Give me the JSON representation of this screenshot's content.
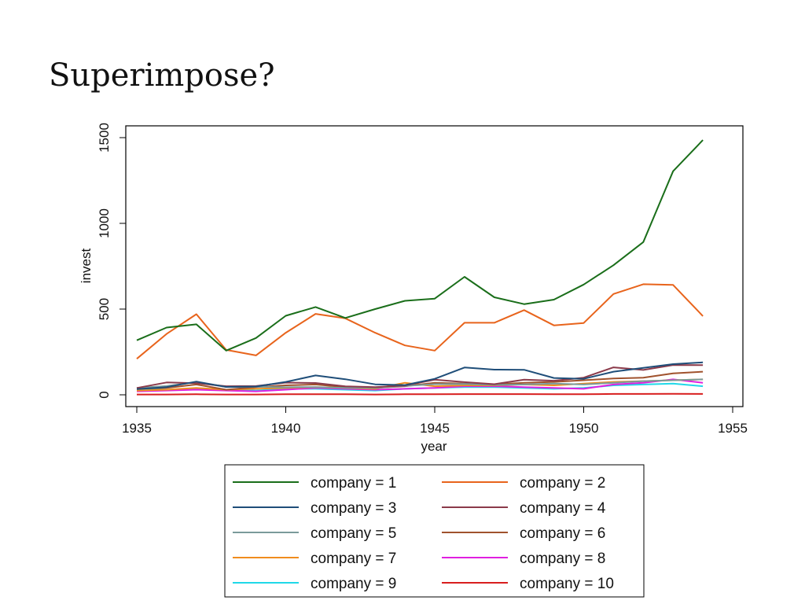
{
  "slide": {
    "title": "Superimpose?"
  },
  "chart_data": {
    "type": "line",
    "title": "",
    "xlabel": "year",
    "ylabel": "invest",
    "xlim": [
      1935,
      1955
    ],
    "ylim": [
      0,
      1500
    ],
    "x_ticks": [
      1935,
      1940,
      1945,
      1950,
      1955
    ],
    "y_ticks": [
      0,
      500,
      1000,
      1500
    ],
    "grid": false,
    "legend_position": "bottom",
    "x": [
      1935,
      1936,
      1937,
      1938,
      1939,
      1940,
      1941,
      1942,
      1943,
      1944,
      1945,
      1946,
      1947,
      1948,
      1949,
      1950,
      1951,
      1952,
      1953,
      1954
    ],
    "series": [
      {
        "name": "company = 1",
        "color": "#1a6e1a",
        "values": [
          318,
          392,
          411,
          258,
          331,
          461,
          512,
          448,
          500,
          548,
          561,
          688,
          569,
          529,
          555,
          643,
          756,
          891,
          1304,
          1486
        ]
      },
      {
        "name": "company = 2",
        "color": "#e8641c",
        "values": [
          210,
          355,
          470,
          262,
          230,
          362,
          472,
          446,
          362,
          288,
          258,
          420,
          420,
          494,
          405,
          419,
          588,
          645,
          641,
          459
        ]
      },
      {
        "name": "company = 3",
        "color": "#1f4e79",
        "values": [
          33,
          45,
          77,
          46,
          48,
          75,
          113,
          91,
          61,
          57,
          93,
          159,
          147,
          146,
          98,
          93,
          135,
          157,
          179,
          189
        ]
      },
      {
        "name": "company = 4",
        "color": "#8b3a4a",
        "values": [
          40,
          72,
          68,
          50,
          51,
          71,
          69,
          49,
          45,
          54,
          88,
          74,
          62,
          88,
          82,
          100,
          160,
          145,
          174,
          173
        ]
      },
      {
        "name": "company = 5",
        "color": "#7a9a9a",
        "values": [
          40,
          51,
          74,
          46,
          47,
          44,
          45,
          40,
          40,
          52,
          62,
          63,
          58,
          60,
          65,
          60,
          70,
          80,
          85,
          90
        ]
      },
      {
        "name": "company = 6",
        "color": "#a0522d",
        "values": [
          35,
          40,
          60,
          30,
          45,
          55,
          60,
          45,
          40,
          50,
          70,
          65,
          60,
          70,
          75,
          85,
          95,
          100,
          125,
          135
        ]
      },
      {
        "name": "company = 7",
        "color": "#f08c1e",
        "values": [
          25,
          30,
          40,
          30,
          35,
          40,
          45,
          40,
          35,
          70,
          50,
          55,
          55,
          60,
          55,
          65,
          75,
          80,
          85,
          90
        ]
      },
      {
        "name": "company = 8",
        "color": "#e020e0",
        "values": [
          20,
          25,
          30,
          25,
          20,
          30,
          40,
          35,
          30,
          35,
          40,
          50,
          50,
          45,
          40,
          35,
          60,
          70,
          90,
          70
        ]
      },
      {
        "name": "company = 9",
        "color": "#20d8e8",
        "values": [
          30,
          30,
          35,
          30,
          25,
          35,
          35,
          30,
          25,
          35,
          40,
          45,
          45,
          40,
          35,
          40,
          55,
          60,
          65,
          50
        ]
      },
      {
        "name": "company = 10",
        "color": "#d81e1e",
        "values": [
          2,
          2,
          3,
          2,
          2,
          3,
          3,
          3,
          2,
          3,
          3,
          4,
          4,
          4,
          3,
          3,
          5,
          5,
          6,
          5
        ]
      }
    ]
  }
}
